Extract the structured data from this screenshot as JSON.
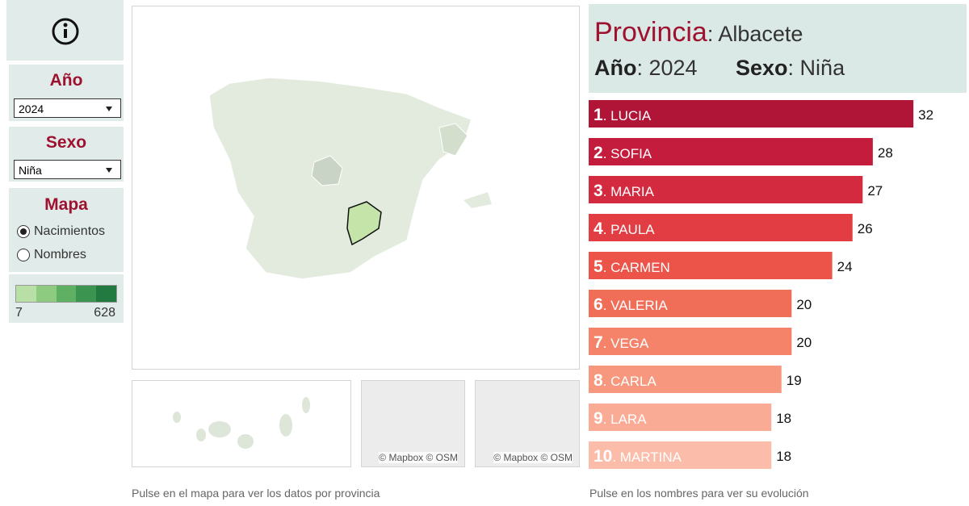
{
  "sidebar": {
    "year": {
      "title": "Año",
      "selected": "2024"
    },
    "sex": {
      "title": "Sexo",
      "selected": "Niña"
    },
    "map": {
      "title": "Mapa",
      "options": [
        "Nacimientos",
        "Nombres"
      ],
      "checked": 0
    },
    "legend": {
      "min": "7",
      "max": "628",
      "colors": [
        "#b7dfa6",
        "#8ccb80",
        "#5fb062",
        "#3b9550",
        "#237a40"
      ]
    }
  },
  "header": {
    "province_label": "Provincia",
    "province_value": ": Albacete",
    "year_label": "Año",
    "year_value": ": 2024",
    "sex_label": "Sexo",
    "sex_value": ": Niña"
  },
  "map": {
    "attributions": [
      "© Mapbox",
      "© OSM",
      "© Mapbox",
      "© OSM"
    ],
    "footer": "Pulse en el mapa para ver los datos por provincia"
  },
  "chart_data": {
    "type": "bar",
    "orientation": "horizontal",
    "categories": [
      "1. LUCIA",
      "2. SOFIA",
      "3. MARIA",
      "4. PAULA",
      "5. CARMEN",
      "6. VALERIA",
      "7. VEGA",
      "8. CARLA",
      "9. LARA",
      "10. MARTINA"
    ],
    "values": [
      32,
      28,
      27,
      26,
      24,
      20,
      20,
      19,
      18,
      18
    ],
    "colors": [
      "#b01538",
      "#c41c3c",
      "#d42a3f",
      "#e23d43",
      "#ec5449",
      "#f06e58",
      "#f4836a",
      "#f7977e",
      "#faab95",
      "#fbbdaa"
    ],
    "xlim": [
      0,
      37
    ],
    "footer": "Pulse en los nombres para ver su evolución"
  }
}
